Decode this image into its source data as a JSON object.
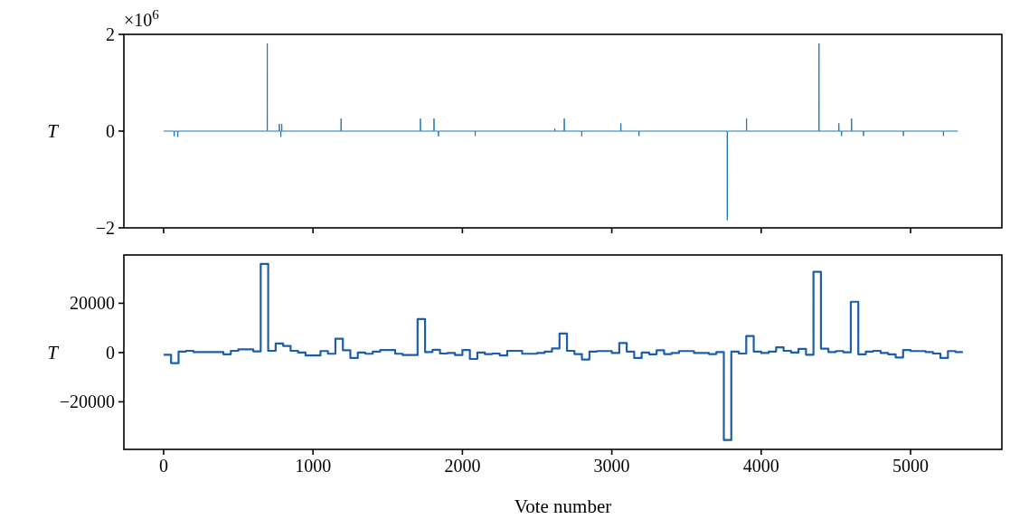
{
  "chart_data": [
    {
      "type": "line",
      "ylabel": "T",
      "annotations": [
        "×10$^{6}$"
      ],
      "xlim": [
        -266,
        5611
      ],
      "xticks": [
        0,
        1000,
        2000,
        3000,
        4000,
        5000
      ],
      "ylim": [
        -2,
        2
      ],
      "yticks": [
        2,
        0,
        {
          "value": -2,
          "label": "−2"
        }
      ],
      "tick_labels": "y",
      "grid": false,
      "series": [
        {
          "color": "#1f77b4",
          "x": [
            0,
            70,
            71,
            72,
            94,
            95,
            96,
            693,
            694,
            695,
            774,
            775,
            776,
            784,
            785,
            786,
            790,
            791,
            792,
            1187,
            1188,
            1189,
            1718,
            1719,
            1720,
            1809,
            1810,
            1811,
            1839,
            1840,
            1841,
            2085,
            2086,
            2087,
            2618,
            2619,
            2620,
            2681,
            2682,
            2683,
            2798,
            2799,
            2800,
            3060,
            3061,
            3062,
            3181,
            3182,
            3183,
            3772,
            3773,
            3774,
            3901,
            3902,
            3903,
            4386,
            4387,
            4388,
            4519,
            4520,
            4521,
            4537,
            4538,
            4539,
            4604,
            4605,
            4606,
            4684,
            4685,
            4686,
            4951,
            4952,
            4953,
            5219,
            5220,
            5221,
            5317
          ],
          "values": [
            0,
            0,
            -0.11,
            0,
            0,
            -0.12,
            0,
            0,
            1.81,
            0,
            0,
            0.15,
            0,
            0,
            -0.12,
            0,
            0,
            0.15,
            0,
            0,
            0.26,
            0,
            0,
            0.26,
            0,
            0,
            0.26,
            0,
            0,
            -0.11,
            0,
            0,
            -0.1,
            0,
            0,
            0.05,
            0,
            0,
            0.26,
            0,
            0,
            -0.11,
            0,
            0,
            0.16,
            0,
            0,
            -0.1,
            0,
            0,
            -1.84,
            0,
            0,
            0.26,
            0,
            0,
            1.81,
            0,
            0,
            0.16,
            0,
            0,
            -0.1,
            0,
            0,
            0.26,
            0,
            0,
            -0.1,
            0,
            0,
            -0.1,
            0,
            0,
            -0.1,
            0,
            0
          ]
        }
      ]
    },
    {
      "type": "step",
      "xlabel": "Vote number",
      "ylabel": "T",
      "xlim": [
        -266,
        5611
      ],
      "xticks": [
        0,
        1000,
        2000,
        3000,
        4000,
        5000
      ],
      "ylim": [
        -39300,
        39600
      ],
      "yticks": [
        20000,
        0,
        {
          "value": -20000,
          "label": "−20000"
        }
      ],
      "grid": false,
      "series": [
        {
          "color": "#1c5fa8",
          "x": [
            0,
            50,
            100,
            150,
            200,
            400,
            450,
            500,
            600,
            650,
            700,
            750,
            800,
            850,
            900,
            950,
            1050,
            1100,
            1150,
            1200,
            1250,
            1300,
            1350,
            1400,
            1450,
            1550,
            1600,
            1700,
            1750,
            1800,
            1850,
            1900,
            1950,
            2000,
            2050,
            2100,
            2150,
            2200,
            2250,
            2300,
            2400,
            2500,
            2550,
            2600,
            2650,
            2700,
            2750,
            2800,
            2850,
            2900,
            3000,
            3050,
            3100,
            3150,
            3200,
            3250,
            3300,
            3350,
            3400,
            3450,
            3550,
            3650,
            3700,
            3750,
            3800,
            3850,
            3900,
            3950,
            4000,
            4050,
            4100,
            4150,
            4200,
            4250,
            4300,
            4350,
            4400,
            4450,
            4500,
            4550,
            4600,
            4650,
            4700,
            4750,
            4800,
            4850,
            4900,
            4950,
            5000,
            5100,
            5150,
            5200,
            5250,
            5300,
            5350
          ],
          "values": [
            -900,
            -4300,
            400,
            700,
            200,
            -700,
            700,
            1300,
            500,
            36000,
            700,
            3700,
            2700,
            700,
            0,
            -1200,
            600,
            -500,
            5600,
            900,
            -2200,
            0,
            -500,
            400,
            1000,
            -500,
            -1000,
            13600,
            200,
            1100,
            -400,
            -200,
            -1000,
            1000,
            -2600,
            0,
            -600,
            -400,
            -1200,
            700,
            -500,
            -200,
            400,
            1700,
            7700,
            700,
            -600,
            -2800,
            400,
            600,
            -200,
            3900,
            400,
            -2200,
            0,
            -700,
            900,
            -600,
            -200,
            600,
            -200,
            -600,
            200,
            -35500,
            400,
            -400,
            6700,
            400,
            -200,
            400,
            2100,
            700,
            0,
            1500,
            -900,
            32800,
            1600,
            200,
            600,
            100,
            20600,
            -700,
            400,
            700,
            -200,
            -700,
            -2000,
            1000,
            600,
            200,
            -400,
            -2200,
            600,
            200,
            200
          ]
        }
      ]
    }
  ]
}
